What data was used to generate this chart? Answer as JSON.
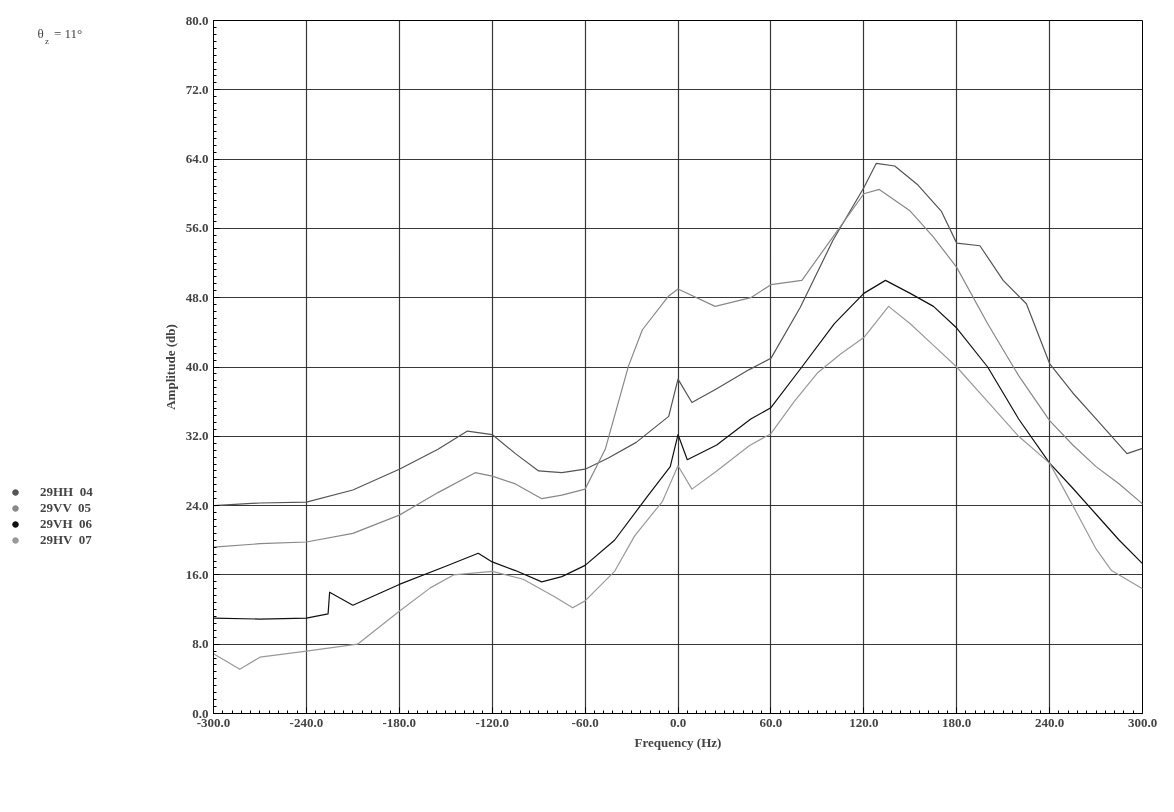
{
  "chart_data": {
    "type": "line",
    "xlabel": "Frequency (Hz)",
    "ylabel": "Amplitude (db)",
    "annotations": [
      "θ$_{z}$ = 11°"
    ],
    "xlim": [
      -300,
      300
    ],
    "ylim": [
      0,
      80
    ],
    "xticks": [
      {
        "value": -300,
        "label": "-300.0"
      },
      {
        "value": -240,
        "label": "-240.0"
      },
      {
        "value": -180,
        "label": "-180.0"
      },
      {
        "value": -120,
        "label": "-120.0"
      },
      {
        "value": -60,
        "label": "-60.0"
      },
      {
        "value": 0,
        "label": "0.0"
      },
      {
        "value": 60,
        "label": "60.0"
      },
      {
        "value": 120,
        "label": "120.0"
      },
      {
        "value": 180,
        "label": "180.0"
      },
      {
        "value": 240,
        "label": "240.0"
      },
      {
        "value": 300,
        "label": "300.0"
      }
    ],
    "yticks": [
      {
        "value": 0,
        "label": "0.0"
      },
      {
        "value": 8,
        "label": "8.0"
      },
      {
        "value": 16,
        "label": "16.0"
      },
      {
        "value": 24,
        "label": "24.0"
      },
      {
        "value": 32,
        "label": "32.0"
      },
      {
        "value": 40,
        "label": "40.0"
      },
      {
        "value": 48,
        "label": "48.0"
      },
      {
        "value": 56,
        "label": "56.0"
      },
      {
        "value": 64,
        "label": "64.0"
      },
      {
        "value": 72,
        "label": "72.0"
      },
      {
        "value": 80,
        "label": "80.0"
      }
    ],
    "grid": true,
    "legend": "left",
    "series": [
      {
        "name": "29HH  04",
        "color": "#555555",
        "x": [
          -300,
          -270,
          -240,
          -210,
          -180,
          -155,
          -136,
          -120,
          -105,
          -90,
          -75,
          -60,
          -45,
          -27,
          -6,
          0,
          9,
          25,
          46,
          60,
          79,
          100,
          120,
          128,
          140,
          155,
          170,
          180,
          195,
          210,
          225,
          240,
          255,
          270,
          290,
          300
        ],
        "values": [
          24,
          24.3,
          24.4,
          25.8,
          28.2,
          30.5,
          32.6,
          32.2,
          30,
          28,
          27.8,
          28.2,
          29.5,
          31.3,
          34.3,
          38.6,
          35.9,
          37.5,
          39.7,
          41,
          46.9,
          54.6,
          60.7,
          63.5,
          63.2,
          61,
          58,
          54.3,
          54,
          50,
          47.3,
          40.4,
          37,
          34,
          30,
          30.6
        ]
      },
      {
        "name": "29VV  05",
        "color": "#888888",
        "x": [
          -300,
          -270,
          -240,
          -210,
          -180,
          -155,
          -131,
          -120,
          -105,
          -88,
          -75,
          -60,
          -47,
          -32,
          -23,
          -6,
          0,
          24,
          47,
          60,
          80,
          100,
          120,
          130,
          150,
          165,
          180,
          200,
          220,
          240,
          255,
          270,
          285,
          300
        ],
        "values": [
          19.2,
          19.6,
          19.8,
          20.8,
          22.9,
          25.5,
          27.8,
          27.4,
          26.5,
          24.8,
          25.2,
          25.9,
          30.5,
          40.1,
          44.3,
          48.2,
          49,
          47,
          48,
          49.5,
          50,
          55,
          60,
          60.5,
          58,
          55,
          51.5,
          45,
          39,
          33.8,
          31,
          28.5,
          26.5,
          24.2
        ]
      },
      {
        "name": "29VH  06",
        "color": "#111111",
        "x": [
          -300,
          -270,
          -240,
          -226,
          -225,
          -210,
          -180,
          -150,
          -129,
          -120,
          -105,
          -88,
          -75,
          -60,
          -41,
          -20,
          -5,
          0,
          6,
          25,
          47,
          60,
          80,
          101,
          120,
          134,
          150,
          165,
          180,
          200,
          220,
          240,
          255,
          270,
          285,
          300
        ],
        "values": [
          11,
          10.9,
          11,
          11.5,
          14,
          12.5,
          14.9,
          17,
          18.5,
          17.5,
          16.5,
          15.2,
          15.8,
          17.1,
          20,
          25,
          28.5,
          32.2,
          29.3,
          31,
          34,
          35.3,
          40,
          45,
          48.5,
          50,
          48.5,
          47,
          44.5,
          40,
          34,
          28.9,
          26,
          23,
          20,
          17.3
        ]
      },
      {
        "name": "29HV  07",
        "color": "#999999",
        "x": [
          -300,
          -283,
          -270,
          -240,
          -207,
          -180,
          -160,
          -145,
          -120,
          -100,
          -80,
          -68,
          -60,
          -41,
          -28,
          -10,
          0,
          9,
          25,
          46,
          60,
          75,
          90,
          105,
          120,
          136,
          150,
          165,
          180,
          200,
          220,
          240,
          255,
          270,
          280,
          300
        ],
        "values": [
          6.9,
          5.1,
          6.5,
          7.2,
          8,
          11.8,
          14.5,
          16,
          16.4,
          15.5,
          13.5,
          12.2,
          13,
          16.4,
          20.5,
          24.5,
          28.6,
          25.9,
          28,
          30.9,
          32.3,
          36,
          39.3,
          41.5,
          43.4,
          47,
          45,
          42.5,
          40,
          36,
          32,
          28.9,
          24,
          19,
          16.5,
          14.4
        ]
      }
    ]
  }
}
